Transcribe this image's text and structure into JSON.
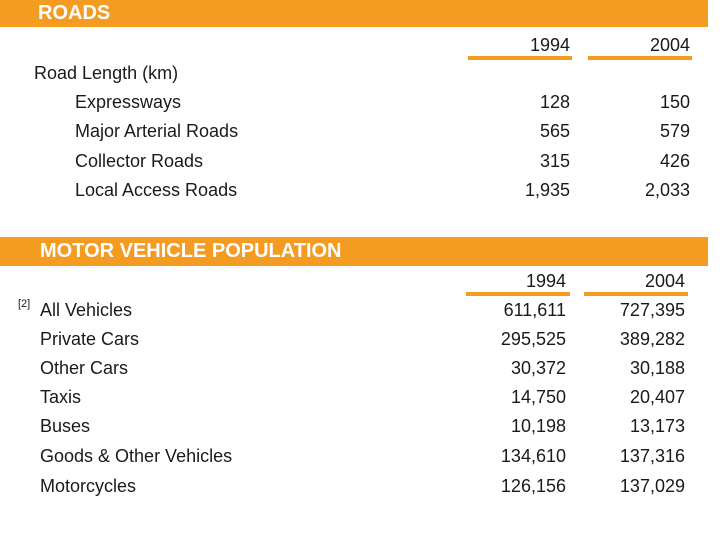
{
  "roads": {
    "title": "ROADS",
    "years": [
      "1994",
      "2004"
    ],
    "group_label": "Road Length (km)",
    "rows": [
      {
        "label": "Expressways",
        "v1994": "128",
        "v2004": "150"
      },
      {
        "label": "Major Arterial Roads",
        "v1994": "565",
        "v2004": "579"
      },
      {
        "label": "Collector Roads",
        "v1994": "315",
        "v2004": "426"
      },
      {
        "label": "Local Access Roads",
        "v1994": "1,935",
        "v2004": "2,033"
      }
    ]
  },
  "motor": {
    "title": "MOTOR VEHICLE POPULATION",
    "years": [
      "1994",
      "2004"
    ],
    "footnote": "[2]",
    "rows": [
      {
        "label": "All Vehicles",
        "v1994": "611,611",
        "v2004": "727,395"
      },
      {
        "label": "Private Cars",
        "v1994": "295,525",
        "v2004": "389,282"
      },
      {
        "label": "Other Cars",
        "v1994": "30,372",
        "v2004": "30,188"
      },
      {
        "label": "Taxis",
        "v1994": "14,750",
        "v2004": "20,407"
      },
      {
        "label": "Buses",
        "v1994": "10,198",
        "v2004": "13,173"
      },
      {
        "label": "Goods & Other Vehicles",
        "v1994": "134,610",
        "v2004": "137,316"
      },
      {
        "label": "Motorcycles",
        "v1994": "126,156",
        "v2004": "137,029"
      }
    ]
  },
  "colors": {
    "accent": "#f39c21",
    "text": "#1a1a1a",
    "bar_text": "#ffffff"
  }
}
